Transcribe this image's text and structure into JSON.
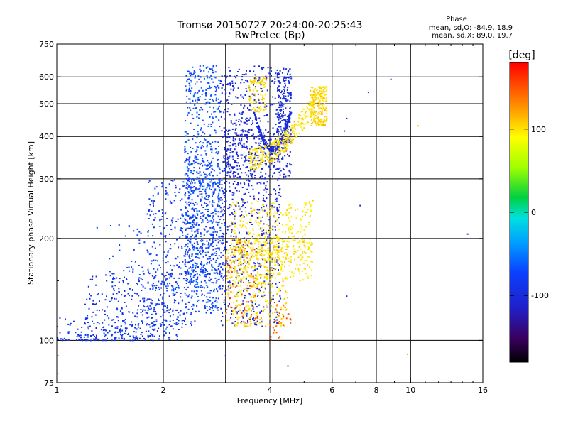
{
  "chart_data": {
    "type": "scatter",
    "title": "Tromsø 20150727 20:24:00-20:25:43",
    "subtitle": "RwPretec (Bp)",
    "xlabel": "Frequency [MHz]",
    "ylabel": "Stationary phase Virtual Height [km]",
    "x_scale": "log",
    "y_scale": "log",
    "xlim": [
      1,
      16
    ],
    "ylim": [
      75,
      750
    ],
    "x_ticks": [
      {
        "value": 1,
        "label": "1"
      },
      {
        "value": 2,
        "label": "2"
      },
      {
        "value": 4,
        "label": "4"
      },
      {
        "value": 6,
        "label": "6"
      },
      {
        "value": 8,
        "label": "8"
      },
      {
        "value": 10,
        "label": "10"
      },
      {
        "value": 16,
        "label": "16"
      }
    ],
    "x_grid": [
      2,
      3,
      4,
      6,
      8,
      10
    ],
    "y_ticks": [
      {
        "value": 75,
        "label": "75"
      },
      {
        "value": 100,
        "label": "100"
      },
      {
        "value": 200,
        "label": "200"
      },
      {
        "value": 300,
        "label": "300"
      },
      {
        "value": 400,
        "label": "400"
      },
      {
        "value": 500,
        "label": "500"
      },
      {
        "value": 600,
        "label": "600"
      },
      {
        "value": 750,
        "label": "750"
      }
    ],
    "y_grid": [
      100,
      200,
      300,
      400,
      500,
      600
    ],
    "grid": true,
    "phase_stats": {
      "label": "Phase",
      "line_o": "mean, sd,O: -84.9, 18.9",
      "line_x": "mean, sd,X:  89.0, 19.7"
    },
    "colorbar": {
      "unit": "[deg]",
      "range": [
        -180,
        180
      ],
      "ticks": [
        {
          "value": 100,
          "label": "100"
        },
        {
          "value": 0,
          "label": "0"
        },
        {
          "value": -100,
          "label": "-100"
        }
      ]
    },
    "clusters": [
      {
        "f": [
          1.0,
          1.9
        ],
        "h": [
          100,
          118
        ],
        "phase": [
          -100,
          -70
        ],
        "n": 160,
        "shape": "floor"
      },
      {
        "f": [
          1.2,
          2.3
        ],
        "h": [
          100,
          160
        ],
        "phase": [
          -110,
          -70
        ],
        "n": 220
      },
      {
        "f": [
          1.8,
          2.5
        ],
        "h": [
          110,
          300
        ],
        "phase": [
          -100,
          -60
        ],
        "n": 320
      },
      {
        "f": [
          2.3,
          2.9
        ],
        "h": [
          120,
          650
        ],
        "phase": [
          -80,
          -55
        ],
        "n": 700
      },
      {
        "f": [
          2.3,
          3.0
        ],
        "h": [
          150,
          350
        ],
        "phase": [
          -95,
          -65
        ],
        "n": 300
      },
      {
        "f": [
          2.9,
          4.3
        ],
        "h": [
          110,
          650
        ],
        "phase": [
          -115,
          -90
        ],
        "n": 800
      },
      {
        "f": [
          3.6,
          4.6
        ],
        "h": [
          360,
          470
        ],
        "phase": [
          -110,
          -90
        ],
        "n": 250,
        "shape": "arc-up"
      },
      {
        "f": [
          3.0,
          4.6
        ],
        "h": [
          300,
          420
        ],
        "phase": [
          -115,
          -95
        ],
        "n": 260
      },
      {
        "f": [
          4.2,
          4.6
        ],
        "h": [
          380,
          640
        ],
        "phase": [
          -110,
          -90
        ],
        "n": 200
      },
      {
        "f": [
          3.0,
          4.5
        ],
        "h": [
          110,
          200
        ],
        "phase": [
          85,
          120
        ],
        "n": 380
      },
      {
        "f": [
          3.1,
          5.3
        ],
        "h": [
          150,
          260
        ],
        "phase": [
          90,
          110
        ],
        "n": 360
      },
      {
        "f": [
          3.2,
          5.3
        ],
        "h": [
          170,
          200
        ],
        "phase": [
          95,
          110
        ],
        "n": 120
      },
      {
        "f": [
          3.5,
          5.8
        ],
        "h": [
          320,
          560
        ],
        "phase": [
          90,
          110
        ],
        "n": 360,
        "shape": "arc-down"
      },
      {
        "f": [
          5.2,
          5.8
        ],
        "h": [
          430,
          560
        ],
        "phase": [
          95,
          115
        ],
        "n": 160
      },
      {
        "f": [
          3.5,
          3.9
        ],
        "h": [
          470,
          600
        ],
        "phase": [
          95,
          110
        ],
        "n": 90
      },
      {
        "f": [
          3.0,
          3.7
        ],
        "h": [
          110,
          200
        ],
        "phase": [
          130,
          170
        ],
        "n": 60
      },
      {
        "f": [
          4.0,
          4.6
        ],
        "h": [
          100,
          130
        ],
        "phase": [
          140,
          170
        ],
        "n": 30
      },
      {
        "f": [
          1.4,
          2.2
        ],
        "h": [
          100,
          220
        ],
        "phase": [
          -85,
          -65
        ],
        "n": 120
      }
    ],
    "outliers": [
      {
        "f": 1.3,
        "h": 215,
        "phase": -75
      },
      {
        "f": 1.42,
        "h": 218,
        "phase": -75
      },
      {
        "f": 1.5,
        "h": 219,
        "phase": -75
      },
      {
        "f": 1.6,
        "h": 218,
        "phase": -75
      },
      {
        "f": 6.5,
        "h": 415,
        "phase": -100
      },
      {
        "f": 6.6,
        "h": 452,
        "phase": -100
      },
      {
        "f": 7.6,
        "h": 540,
        "phase": -100
      },
      {
        "f": 8.8,
        "h": 590,
        "phase": -100
      },
      {
        "f": 7.2,
        "h": 250,
        "phase": -100
      },
      {
        "f": 14.5,
        "h": 206,
        "phase": -100
      },
      {
        "f": 10.5,
        "h": 430,
        "phase": 110
      },
      {
        "f": 6.6,
        "h": 135,
        "phase": -100
      },
      {
        "f": 9.8,
        "h": 91,
        "phase": 120
      },
      {
        "f": 4.5,
        "h": 84,
        "phase": -100
      },
      {
        "f": 3.0,
        "h": 90,
        "phase": -100
      }
    ]
  }
}
